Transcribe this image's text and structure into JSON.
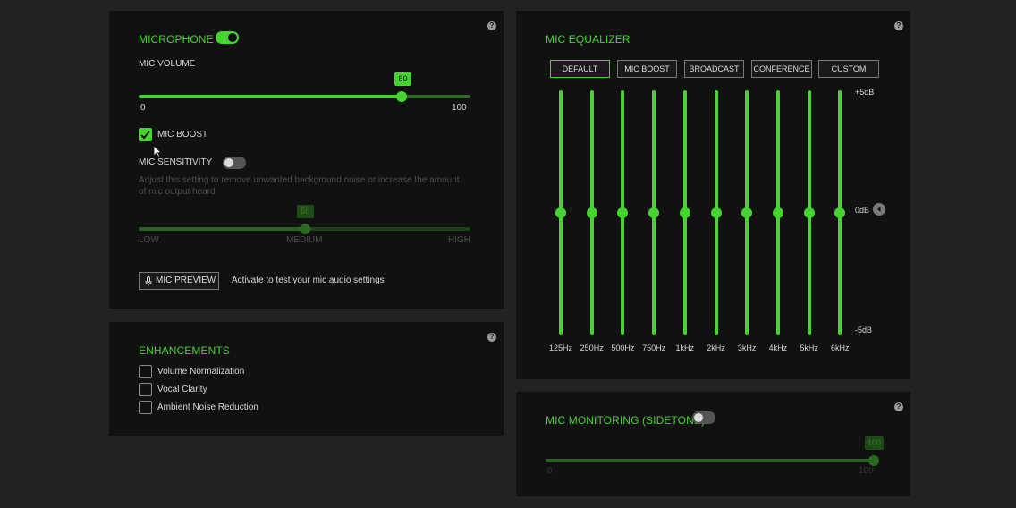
{
  "microphone": {
    "title": "MICROPHONE",
    "enabled": true,
    "volume_label": "MIC VOLUME",
    "volume_value": "80",
    "volume_percent": 80,
    "volume_min": "0",
    "volume_max": "100",
    "boost_label": "MIC BOOST",
    "boost_checked": true,
    "sensitivity_label": "MIC SENSITIVITY",
    "sensitivity_enabled": false,
    "sensitivity_desc_1": "Adjust this setting to remove unwanted background noise or increase the amount",
    "sensitivity_desc_2": "of mic output heard",
    "sensitivity_value": "50",
    "sensitivity_percent": 50,
    "sensitivity_low": "LOW",
    "sensitivity_medium": "MEDIUM",
    "sensitivity_high": "HIGH",
    "preview_label": "MIC PREVIEW",
    "preview_desc": "Activate to test your mic audio settings"
  },
  "enhancements": {
    "title": "ENHANCEMENTS",
    "items": [
      {
        "label": "Volume Normalization",
        "checked": false
      },
      {
        "label": "Vocal Clarity",
        "checked": false
      },
      {
        "label": "Ambient Noise Reduction",
        "checked": false
      }
    ]
  },
  "equalizer": {
    "title": "MIC EQUALIZER",
    "presets": [
      "DEFAULT",
      "MIC BOOST",
      "BROADCAST",
      "CONFERENCE",
      "CUSTOM"
    ],
    "active_preset": 0,
    "scale_top": "+5dB",
    "scale_mid": "0dB",
    "scale_bottom": "-5dB",
    "bands": [
      {
        "label": "125Hz",
        "db": 0
      },
      {
        "label": "250Hz",
        "db": 0
      },
      {
        "label": "500Hz",
        "db": 0
      },
      {
        "label": "750Hz",
        "db": 0
      },
      {
        "label": "1kHz",
        "db": 0
      },
      {
        "label": "2kHz",
        "db": 0
      },
      {
        "label": "3kHz",
        "db": 0
      },
      {
        "label": "4kHz",
        "db": 0
      },
      {
        "label": "5kHz",
        "db": 0
      },
      {
        "label": "6kHz",
        "db": 0
      }
    ]
  },
  "monitoring": {
    "title": "MIC MONITORING (SIDETONE)",
    "enabled": false,
    "value": "100",
    "percent": 100,
    "min": "0",
    "max": "100"
  },
  "help_glyph": "?",
  "colors": {
    "accent": "#44d62c",
    "panel": "#111111",
    "background": "#222222"
  }
}
